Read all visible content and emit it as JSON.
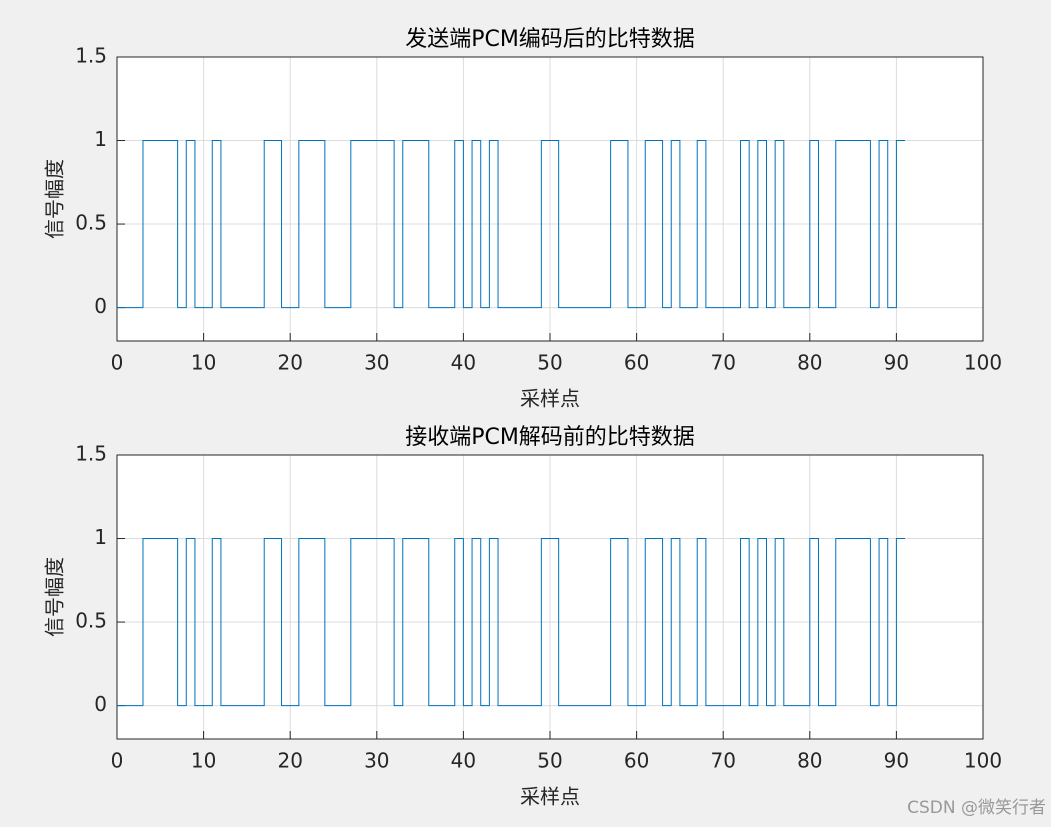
{
  "chart_data": [
    {
      "type": "stairs",
      "title": "发送端PCM编码后的比特数据",
      "xlabel": "采样点",
      "ylabel": "信号幅度",
      "color": "#0072bd",
      "grid": true,
      "xlim": [
        0,
        100
      ],
      "xticks": [
        0,
        10,
        20,
        30,
        40,
        50,
        60,
        70,
        80,
        90,
        100
      ],
      "ylim": [
        -0.2,
        1.5
      ],
      "yticks": [
        0,
        0.5,
        1,
        1.5
      ],
      "values": [
        0,
        0,
        0,
        1,
        1,
        1,
        1,
        0,
        1,
        0,
        0,
        1,
        0,
        0,
        0,
        0,
        0,
        1,
        1,
        0,
        0,
        1,
        1,
        1,
        0,
        0,
        0,
        1,
        1,
        1,
        1,
        1,
        0,
        1,
        1,
        1,
        0,
        0,
        0,
        1,
        0,
        1,
        0,
        1,
        0,
        0,
        0,
        0,
        0,
        1,
        1,
        0,
        0,
        0,
        0,
        0,
        0,
        1,
        1,
        0,
        0,
        1,
        1,
        0,
        1,
        0,
        0,
        1,
        0,
        0,
        0,
        0,
        1,
        0,
        1,
        0,
        1,
        0,
        0,
        0,
        1,
        0,
        0,
        1,
        1,
        1,
        1,
        0,
        1,
        0,
        1
      ]
    },
    {
      "type": "stairs",
      "title": "接收端PCM解码前的比特数据",
      "xlabel": "采样点",
      "ylabel": "信号幅度",
      "color": "#0072bd",
      "grid": true,
      "xlim": [
        0,
        100
      ],
      "xticks": [
        0,
        10,
        20,
        30,
        40,
        50,
        60,
        70,
        80,
        90,
        100
      ],
      "ylim": [
        -0.2,
        1.5
      ],
      "yticks": [
        0,
        0.5,
        1,
        1.5
      ],
      "values": [
        0,
        0,
        0,
        1,
        1,
        1,
        1,
        0,
        1,
        0,
        0,
        1,
        0,
        0,
        0,
        0,
        0,
        1,
        1,
        0,
        0,
        1,
        1,
        1,
        0,
        0,
        0,
        1,
        1,
        1,
        1,
        1,
        0,
        1,
        1,
        1,
        0,
        0,
        0,
        1,
        0,
        1,
        0,
        1,
        0,
        0,
        0,
        0,
        0,
        1,
        1,
        0,
        0,
        0,
        0,
        0,
        0,
        1,
        1,
        0,
        0,
        1,
        1,
        0,
        1,
        0,
        0,
        1,
        0,
        0,
        0,
        0,
        1,
        0,
        1,
        0,
        1,
        0,
        0,
        0,
        1,
        0,
        0,
        1,
        1,
        1,
        1,
        0,
        1,
        0,
        1
      ]
    }
  ],
  "watermark": "CSDN @微笑行者"
}
